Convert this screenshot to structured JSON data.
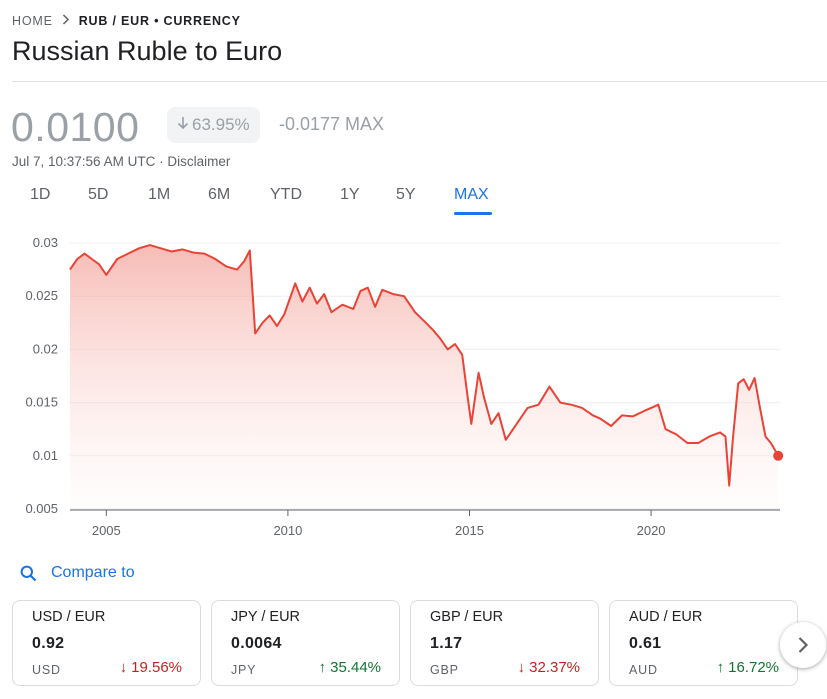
{
  "breadcrumb": {
    "home": "HOME",
    "current": "RUB / EUR • CURRENCY"
  },
  "title": "Russian Ruble to Euro",
  "quote": {
    "price": "0.0100",
    "change_pct": "63.95%",
    "change_abs": "-0.0177 MAX",
    "timestamp": "Jul 7, 10:37:56 AM UTC · Disclaimer"
  },
  "ranges": [
    "1D",
    "5D",
    "1M",
    "6M",
    "YTD",
    "1Y",
    "5Y",
    "MAX"
  ],
  "active_range": "MAX",
  "compare_label": "Compare to",
  "colors": {
    "accent": "#1a73e8",
    "line": "#ea4335",
    "down": "#c5221f",
    "up": "#137333"
  },
  "cards": [
    {
      "pair": "USD / EUR",
      "value": "0.92",
      "code": "USD",
      "change": "19.56%",
      "direction": "down"
    },
    {
      "pair": "JPY / EUR",
      "value": "0.0064",
      "code": "JPY",
      "change": "35.44%",
      "direction": "up"
    },
    {
      "pair": "GBP / EUR",
      "value": "1.17",
      "code": "GBP",
      "change": "32.37%",
      "direction": "down"
    },
    {
      "pair": "AUD / EUR",
      "value": "0.61",
      "code": "AUD",
      "change": "16.72%",
      "direction": "up"
    }
  ],
  "chart_data": {
    "type": "area",
    "xlim": [
      2004.0,
      2023.55
    ],
    "ylim": [
      0.005,
      0.03
    ],
    "x_ticks": [
      2005,
      2010,
      2015,
      2020
    ],
    "x_tick_labels": [
      "2005",
      "2010",
      "2015",
      "2020"
    ],
    "y_ticks": [
      0.005,
      0.01,
      0.015,
      0.02,
      0.025,
      0.03
    ],
    "y_tick_labels": [
      "0.005",
      "0.01",
      "0.015",
      "0.02",
      "0.025",
      "0.03"
    ],
    "grid": true,
    "series": [
      {
        "x": [
          2004.0,
          2004.2,
          2004.4,
          2004.6,
          2004.8,
          2005.0,
          2005.3,
          2005.6,
          2005.9,
          2006.2,
          2006.5,
          2006.8,
          2007.1,
          2007.4,
          2007.7,
          2008.0,
          2008.3,
          2008.6,
          2008.8,
          2008.95,
          2009.1,
          2009.3,
          2009.5,
          2009.7,
          2009.9,
          2010.2,
          2010.4,
          2010.6,
          2010.8,
          2011.0,
          2011.2,
          2011.5,
          2011.8,
          2012.0,
          2012.2,
          2012.4,
          2012.6,
          2012.9,
          2013.2,
          2013.5,
          2013.8,
          2014.0,
          2014.2,
          2014.4,
          2014.6,
          2014.8,
          2014.95,
          2015.05,
          2015.25,
          2015.4,
          2015.6,
          2015.8,
          2016.0,
          2016.2,
          2016.4,
          2016.6,
          2016.9,
          2017.2,
          2017.5,
          2017.8,
          2018.1,
          2018.4,
          2018.6,
          2018.9,
          2019.2,
          2019.5,
          2019.8,
          2020.0,
          2020.2,
          2020.4,
          2020.7,
          2021.0,
          2021.3,
          2021.6,
          2021.9,
          2022.05,
          2022.15,
          2022.25,
          2022.4,
          2022.55,
          2022.7,
          2022.85,
          2023.0,
          2023.15,
          2023.3,
          2023.5
        ],
        "y": [
          0.0275,
          0.0285,
          0.029,
          0.0285,
          0.028,
          0.027,
          0.0285,
          0.029,
          0.0295,
          0.0298,
          0.0295,
          0.0292,
          0.0294,
          0.0291,
          0.029,
          0.0285,
          0.0278,
          0.0275,
          0.0283,
          0.0293,
          0.0215,
          0.0225,
          0.0232,
          0.0222,
          0.0233,
          0.0262,
          0.0245,
          0.0258,
          0.0243,
          0.0252,
          0.0235,
          0.0242,
          0.0238,
          0.0255,
          0.0258,
          0.024,
          0.0256,
          0.0252,
          0.025,
          0.0235,
          0.0225,
          0.0218,
          0.021,
          0.02,
          0.0205,
          0.0195,
          0.0155,
          0.013,
          0.0178,
          0.0155,
          0.013,
          0.014,
          0.0115,
          0.0125,
          0.0135,
          0.0145,
          0.0148,
          0.0165,
          0.015,
          0.0148,
          0.0145,
          0.0138,
          0.0135,
          0.0128,
          0.0138,
          0.0137,
          0.0142,
          0.0145,
          0.0148,
          0.0125,
          0.012,
          0.0112,
          0.0112,
          0.0118,
          0.0122,
          0.0118,
          0.0072,
          0.0115,
          0.0168,
          0.0172,
          0.0162,
          0.0173,
          0.0145,
          0.0118,
          0.0112,
          0.01
        ]
      }
    ]
  }
}
